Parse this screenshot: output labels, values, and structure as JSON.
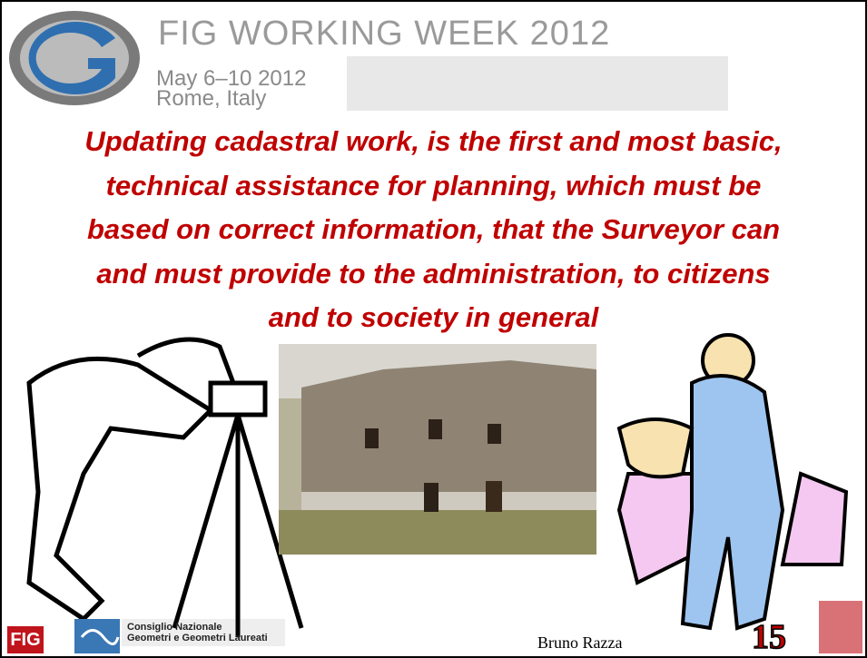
{
  "header": {
    "title": "FIG WORKING WEEK 2012",
    "dates": "May 6–10 2012",
    "location": "Rome, Italy"
  },
  "body": {
    "lines": [
      "Updating cadastral work, is the first and most basic,",
      "technical assistance for planning, which must be",
      "based on correct information, that the Surveyor can",
      "and must provide to the administration, to citizens",
      "and to society in general"
    ]
  },
  "footer": {
    "fig": "FIG",
    "council": [
      "Consiglio Nazionale",
      "Geometri e Geometri Laureati"
    ],
    "author": "Bruno Razza",
    "page": "15"
  }
}
